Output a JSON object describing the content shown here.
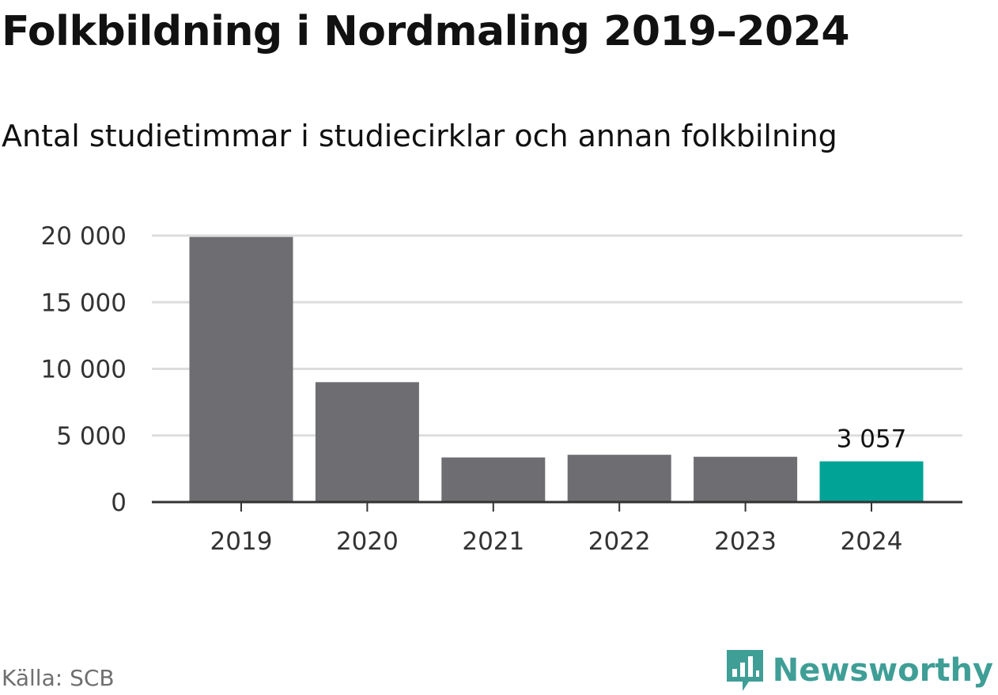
{
  "header": {
    "title": "Folkbildning i Nordmaling 2019–2024",
    "subtitle": "Antal studietimmar i studiecirklar och annan folkbilning"
  },
  "footer": {
    "source": "Källa: SCB",
    "brand": "Newsworthy",
    "brand_icon": "bar-chart-speech-bubble-icon"
  },
  "colors": {
    "bar_default": "#6e6d72",
    "bar_highlight": "#00a396",
    "grid": "#dddddd",
    "axis": "#333333",
    "brand": "#3f9e96"
  },
  "chart_data": {
    "type": "bar",
    "categories": [
      "2019",
      "2020",
      "2021",
      "2022",
      "2023",
      "2024"
    ],
    "values": [
      19900,
      9000,
      3350,
      3550,
      3400,
      3057
    ],
    "highlight_index": 5,
    "data_labels": [
      "",
      "",
      "",
      "",
      "",
      "3 057"
    ],
    "yticks": [
      0,
      5000,
      10000,
      15000,
      20000
    ],
    "ytick_labels": [
      "0",
      "5 000",
      "10 000",
      "15 000",
      "20 000"
    ],
    "ylim": [
      0,
      20000
    ],
    "title": "Folkbildning i Nordmaling 2019–2024",
    "subtitle": "Antal studietimmar i studiecirklar och annan folkbilning",
    "xlabel": "",
    "ylabel": "",
    "grid": true,
    "legend": "none"
  }
}
